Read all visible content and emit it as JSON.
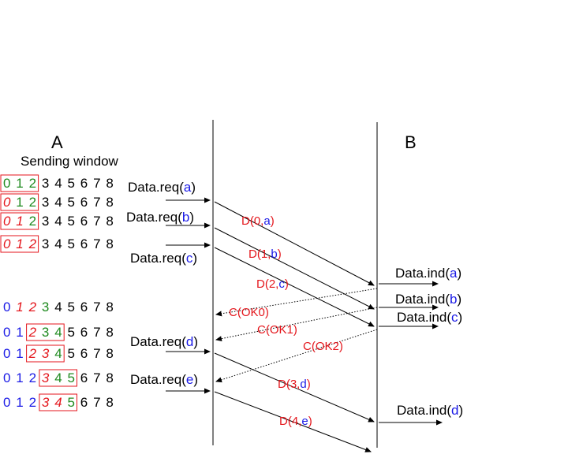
{
  "colors": {
    "red": "#e4161c",
    "green": "#1f8a1f",
    "blue": "#1a1ae6",
    "black": "#000000"
  },
  "headers": {
    "a": "A",
    "b": "B",
    "sending_window": "Sending window"
  },
  "window_rows": [
    {
      "digits": [
        "0",
        "1",
        "2",
        "3",
        "4",
        "5",
        "6",
        "7",
        "8"
      ],
      "box": [
        0,
        2
      ],
      "styles": [
        "g",
        "g",
        "g",
        "k",
        "k",
        "k",
        "k",
        "k",
        "k"
      ]
    },
    {
      "digits": [
        "0",
        "1",
        "2",
        "3",
        "4",
        "5",
        "6",
        "7",
        "8"
      ],
      "box": [
        0,
        2
      ],
      "styles": [
        "ri",
        "g",
        "g",
        "k",
        "k",
        "k",
        "k",
        "k",
        "k"
      ]
    },
    {
      "digits": [
        "0",
        "1",
        "2",
        "3",
        "4",
        "5",
        "6",
        "7",
        "8"
      ],
      "box": [
        0,
        2
      ],
      "styles": [
        "ri",
        "ri",
        "g",
        "k",
        "k",
        "k",
        "k",
        "k",
        "k"
      ]
    },
    {
      "digits": [
        "0",
        "1",
        "2",
        "3",
        "4",
        "5",
        "6",
        "7",
        "8"
      ],
      "box": [
        0,
        2
      ],
      "styles": [
        "ri",
        "ri",
        "ri",
        "k",
        "k",
        "k",
        "k",
        "k",
        "k"
      ]
    },
    {
      "digits": [
        "0",
        "1",
        "2",
        "3",
        "4",
        "5",
        "6",
        "7",
        "8"
      ],
      "box": null,
      "styles": [
        "b",
        "ri",
        "ri",
        "g",
        "k",
        "k",
        "k",
        "k",
        "k"
      ]
    },
    {
      "digits": [
        "0",
        "1",
        "2",
        "3",
        "4",
        "5",
        "6",
        "7",
        "8"
      ],
      "box": [
        2,
        4
      ],
      "styles": [
        "b",
        "b",
        "ri",
        "g",
        "g",
        "k",
        "k",
        "k",
        "k"
      ]
    },
    {
      "digits": [
        "0",
        "1",
        "2",
        "3",
        "4",
        "5",
        "6",
        "7",
        "8"
      ],
      "box": [
        2,
        4
      ],
      "styles": [
        "b",
        "b",
        "ri",
        "ri",
        "g",
        "k",
        "k",
        "k",
        "k"
      ]
    },
    {
      "digits": [
        "0",
        "1",
        "2",
        "3",
        "4",
        "5",
        "6",
        "7",
        "8"
      ],
      "box": [
        3,
        5
      ],
      "styles": [
        "b",
        "b",
        "b",
        "ri",
        "g",
        "g",
        "k",
        "k",
        "k"
      ]
    },
    {
      "digits": [
        "0",
        "1",
        "2",
        "3",
        "4",
        "5",
        "6",
        "7",
        "8"
      ],
      "box": [
        3,
        5
      ],
      "styles": [
        "b",
        "b",
        "b",
        "ri",
        "ri",
        "g",
        "k",
        "k",
        "k"
      ]
    }
  ],
  "requests": [
    {
      "text": "Data.req(",
      "param": "a",
      "close": ")"
    },
    {
      "text": "Data.req(",
      "param": "b",
      "close": ")"
    },
    {
      "text": "Data.req(",
      "param": "c",
      "close": ")"
    },
    {
      "text": "Data.req(",
      "param": "d",
      "close": ")"
    },
    {
      "text": "Data.req(",
      "param": "e",
      "close": ")"
    }
  ],
  "indications": [
    {
      "text": "Data.ind(",
      "param": "a",
      "close": ")"
    },
    {
      "text": "Data.ind(",
      "param": "b",
      "close": ")"
    },
    {
      "text": "Data.ind(",
      "param": "c",
      "close": ")"
    },
    {
      "text": "Data.ind(",
      "param": "d",
      "close": ")"
    }
  ],
  "data_messages": [
    {
      "prefix": "D(0,",
      "param": "a",
      "suffix": ")"
    },
    {
      "prefix": "D(1,",
      "param": "b",
      "suffix": ")"
    },
    {
      "prefix": "D(2,",
      "param": "c",
      "suffix": ")"
    },
    {
      "prefix": "D(3,",
      "param": "d",
      "suffix": ")"
    },
    {
      "prefix": "D(4,",
      "param": "e",
      "suffix": ")"
    }
  ],
  "ack_messages": [
    {
      "label": "C(OK0)"
    },
    {
      "label": "C(OK1)"
    },
    {
      "label": "C(OK2)"
    }
  ]
}
